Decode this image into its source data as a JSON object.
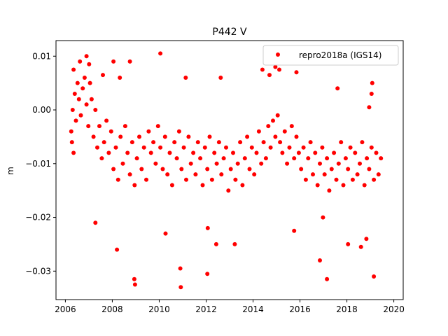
{
  "chart_data": {
    "type": "scatter",
    "title": "P442 V",
    "xlabel": "",
    "ylabel": "m",
    "xlim": [
      2005.6,
      2020.4
    ],
    "ylim": [
      -0.0353,
      0.0129
    ],
    "xticks": [
      2006,
      2008,
      2010,
      2012,
      2014,
      2016,
      2018,
      2020
    ],
    "xtick_labels": [
      "2006",
      "2008",
      "2010",
      "2012",
      "2014",
      "2016",
      "2018",
      "2020"
    ],
    "yticks": [
      0.01,
      0.0,
      -0.01,
      -0.02,
      -0.03
    ],
    "ytick_labels": [
      "0.01",
      "0.00",
      "−0.01",
      "−0.02",
      "−0.03"
    ],
    "grid": false,
    "legend_position": "top-right",
    "series": [
      {
        "name": "repro2018a (IGS14)",
        "color": "#ff0000",
        "marker": "circle",
        "x": [
          2006.25,
          2006.28,
          2006.31,
          2006.35,
          2006.4,
          2006.45,
          2006.52,
          2006.58,
          2006.66,
          2006.74,
          2006.82,
          2006.9,
          2006.98,
          2007.05,
          2007.12,
          2007.2,
          2007.28,
          2007.36,
          2007.45,
          2007.55,
          2007.65,
          2007.75,
          2007.85,
          2007.95,
          2008.05,
          2008.15,
          2008.25,
          2008.35,
          2008.45,
          2008.55,
          2008.65,
          2008.75,
          2008.85,
          2008.95,
          2009.05,
          2009.15,
          2009.25,
          2009.35,
          2009.45,
          2009.55,
          2009.65,
          2009.75,
          2009.85,
          2009.95,
          2010.05,
          2010.15,
          2010.25,
          2010.35,
          2010.45,
          2010.55,
          2010.65,
          2010.75,
          2010.85,
          2010.95,
          2011.05,
          2011.15,
          2011.25,
          2011.35,
          2011.45,
          2011.55,
          2011.65,
          2011.75,
          2011.85,
          2011.95,
          2012.05,
          2012.15,
          2012.25,
          2012.35,
          2012.45,
          2012.55,
          2012.65,
          2012.75,
          2012.85,
          2012.95,
          2013.05,
          2013.15,
          2013.25,
          2013.35,
          2013.45,
          2013.55,
          2013.65,
          2013.75,
          2013.85,
          2013.95,
          2014.05,
          2014.15,
          2014.25,
          2014.35,
          2014.45,
          2014.55,
          2014.65,
          2014.75,
          2014.85,
          2014.95,
          2015.05,
          2015.15,
          2015.25,
          2015.35,
          2015.45,
          2015.55,
          2015.65,
          2015.75,
          2015.85,
          2015.95,
          2016.05,
          2016.15,
          2016.25,
          2016.35,
          2016.45,
          2016.55,
          2016.65,
          2016.75,
          2016.85,
          2016.95,
          2017.05,
          2017.15,
          2017.25,
          2017.35,
          2017.45,
          2017.55,
          2017.65,
          2017.75,
          2017.85,
          2017.95,
          2018.05,
          2018.15,
          2018.25,
          2018.35,
          2018.45,
          2018.55,
          2018.65,
          2018.75,
          2018.85,
          2018.95,
          2019.05,
          2019.15,
          2019.25,
          2019.35,
          2019.45,
          2006.35,
          2006.62,
          2006.9,
          2007.01,
          2007.28,
          2007.6,
          2008.05,
          2008.2,
          2008.32,
          2008.75,
          2008.94,
          2008.97,
          2010.05,
          2010.27,
          2010.9,
          2010.92,
          2011.13,
          2012.05,
          2012.07,
          2012.43,
          2012.62,
          2013.22,
          2014.4,
          2014.95,
          2015.12,
          2015.75,
          2016.85,
          2016.98,
          2017.15,
          2018.05,
          2018.6,
          2018.83,
          2019.08,
          2019.15,
          2018.95,
          2019.05,
          2014.7,
          2015.85,
          2017.6
        ],
        "y": [
          -0.004,
          -0.006,
          0.0,
          -0.008,
          0.003,
          -0.002,
          0.005,
          0.002,
          -0.001,
          0.004,
          0.006,
          0.001,
          -0.003,
          0.005,
          0.002,
          -0.005,
          0.0,
          -0.007,
          -0.003,
          -0.009,
          -0.006,
          -0.002,
          -0.008,
          -0.004,
          -0.011,
          -0.007,
          -0.013,
          -0.005,
          -0.01,
          -0.003,
          -0.008,
          -0.012,
          -0.006,
          -0.014,
          -0.009,
          -0.005,
          -0.011,
          -0.007,
          -0.013,
          -0.004,
          -0.008,
          -0.006,
          -0.01,
          -0.003,
          -0.007,
          -0.011,
          -0.005,
          -0.012,
          -0.008,
          -0.014,
          -0.006,
          -0.009,
          -0.004,
          -0.011,
          -0.007,
          -0.013,
          -0.005,
          -0.01,
          -0.008,
          -0.012,
          -0.006,
          -0.009,
          -0.014,
          -0.007,
          -0.011,
          -0.005,
          -0.013,
          -0.008,
          -0.01,
          -0.006,
          -0.012,
          -0.009,
          -0.007,
          -0.015,
          -0.011,
          -0.008,
          -0.013,
          -0.01,
          -0.006,
          -0.014,
          -0.009,
          -0.005,
          -0.011,
          -0.007,
          -0.012,
          -0.008,
          -0.004,
          -0.01,
          -0.006,
          -0.009,
          -0.003,
          -0.007,
          -0.002,
          -0.005,
          -0.001,
          -0.006,
          -0.008,
          -0.004,
          -0.01,
          -0.007,
          -0.003,
          -0.009,
          -0.005,
          -0.008,
          -0.011,
          -0.007,
          -0.013,
          -0.009,
          -0.006,
          -0.012,
          -0.008,
          -0.014,
          -0.01,
          -0.007,
          -0.012,
          -0.009,
          -0.015,
          -0.011,
          -0.008,
          -0.013,
          -0.01,
          -0.006,
          -0.014,
          -0.009,
          -0.011,
          -0.007,
          -0.013,
          -0.008,
          -0.012,
          -0.01,
          -0.006,
          -0.014,
          -0.009,
          -0.011,
          -0.007,
          -0.013,
          -0.008,
          -0.012,
          -0.009,
          0.0075,
          0.009,
          0.01,
          0.0085,
          -0.021,
          0.0065,
          0.009,
          -0.026,
          0.006,
          0.009,
          -0.0315,
          -0.0325,
          0.0105,
          -0.023,
          -0.0295,
          -0.033,
          0.006,
          -0.0305,
          -0.022,
          -0.025,
          0.006,
          -0.025,
          0.0075,
          0.008,
          0.0075,
          -0.0225,
          -0.028,
          -0.02,
          -0.0315,
          -0.025,
          -0.0255,
          -0.024,
          0.005,
          -0.031,
          0.0005,
          0.003,
          0.0065,
          0.007,
          0.004
        ]
      }
    ]
  }
}
